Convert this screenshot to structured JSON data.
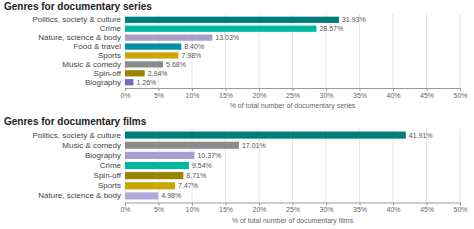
{
  "chart_data": [
    {
      "type": "bar",
      "orientation": "horizontal",
      "title": "Genres for documentary series",
      "categories": [
        "Politics, society & culture",
        "Crime",
        "Nature, science & body",
        "Food & travel",
        "Sports",
        "Music & comedy",
        "Spin-off",
        "Biography"
      ],
      "values": [
        31.93,
        28.57,
        13.03,
        8.4,
        7.98,
        5.68,
        2.94,
        1.26
      ],
      "value_labels": [
        "31.93%",
        "28.57%",
        "13.03%",
        "8.40%",
        "7.98%",
        "5.68%",
        "2.94%",
        "1.26%"
      ],
      "colors": [
        "#007d7a",
        "#00b8a0",
        "#a89fcc",
        "#008fa8",
        "#c8a800",
        "#8c8c8c",
        "#9a8400",
        "#7b66c0"
      ],
      "xlabel": "% of total number of documentary series",
      "xlim": [
        0,
        50
      ],
      "xticks": [
        {
          "value": 0,
          "label": "0%"
        },
        {
          "value": 5,
          "label": "5%"
        },
        {
          "value": 10,
          "label": "10%"
        },
        {
          "value": 15,
          "label": "15%"
        },
        {
          "value": 20,
          "label": "20%"
        },
        {
          "value": 25,
          "label": "25%"
        },
        {
          "value": 30,
          "label": "30%"
        },
        {
          "value": 35,
          "label": "35%"
        },
        {
          "value": 40,
          "label": "40%"
        },
        {
          "value": 45,
          "label": "45%"
        },
        {
          "value": 50,
          "label": "50%"
        }
      ],
      "grid": true
    },
    {
      "type": "bar",
      "orientation": "horizontal",
      "title": "Genres for documentary films",
      "categories": [
        "Politics, society & culture",
        "Music & comedy",
        "Biography",
        "Crime",
        "Spin-off",
        "Sports",
        "Nature, science & body"
      ],
      "values": [
        41.91,
        17.01,
        10.37,
        9.54,
        8.71,
        7.47,
        4.98
      ],
      "value_labels": [
        "41.91%",
        "17.01%",
        "10.37%",
        "9.54%",
        "8.71%",
        "7.47%",
        "4.98%"
      ],
      "colors": [
        "#007d7a",
        "#8c8c8c",
        "#a89fcc",
        "#00b8a0",
        "#9a8400",
        "#c8a800",
        "#b0a8d8"
      ],
      "xlabel": "% of total number of documentary films",
      "xlim": [
        0,
        50
      ],
      "xticks": [
        {
          "value": 0,
          "label": "0%"
        },
        {
          "value": 5,
          "label": "5%"
        },
        {
          "value": 10,
          "label": "10%"
        },
        {
          "value": 15,
          "label": "15%"
        },
        {
          "value": 20,
          "label": "20%"
        },
        {
          "value": 25,
          "label": "25%"
        },
        {
          "value": 30,
          "label": "30%"
        },
        {
          "value": 35,
          "label": "35%"
        },
        {
          "value": 40,
          "label": "40%"
        },
        {
          "value": 45,
          "label": "45%"
        },
        {
          "value": 50,
          "label": "50%"
        }
      ],
      "grid": true
    }
  ]
}
